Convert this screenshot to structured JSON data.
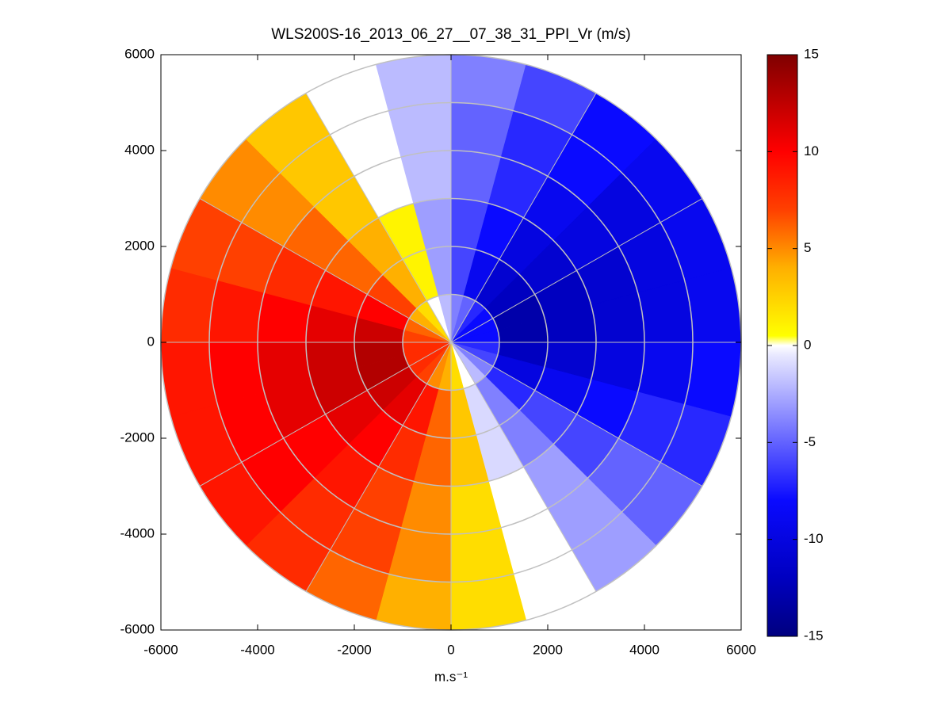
{
  "chart_data": {
    "type": "polar_heatmap",
    "title": "WLS200S-16_2013_06_27__07_38_31_PPI_Vr (m/s)",
    "xlabel": "m.s⁻¹",
    "xlim": [
      -6000,
      6000
    ],
    "ylim": [
      -6000,
      6000
    ],
    "xticks": [
      -6000,
      -4000,
      -2000,
      0,
      2000,
      4000,
      6000
    ],
    "yticks": [
      -6000,
      -4000,
      -2000,
      0,
      2000,
      4000,
      6000
    ],
    "azimuths": [
      7.5,
      22.5,
      37.5,
      52.5,
      67.5,
      82.5,
      97.5,
      112.5,
      127.5,
      142.5,
      157.5,
      172.5,
      187.5,
      202.5,
      217.5,
      232.5,
      247.5,
      262.5,
      277.5,
      292.5,
      307.5,
      322.5,
      337.5,
      352.5
    ],
    "azimuth_width": 15,
    "range_edges": [
      0,
      1000,
      2000,
      3000,
      4000,
      5000,
      6000
    ],
    "values": [
      [
        -4,
        -6,
        -6,
        -5,
        -5,
        -4
      ],
      [
        -5,
        -9,
        -8,
        -7,
        -7,
        -6
      ],
      [
        -7,
        -11,
        -10,
        -9,
        -8,
        -8
      ],
      [
        -8,
        -12,
        -11,
        -10,
        -10,
        -9
      ],
      [
        -8,
        -13,
        -12,
        -11,
        -10,
        -9
      ],
      [
        -8,
        -13,
        -12,
        -11,
        -10,
        -9
      ],
      [
        -7,
        -12,
        -11,
        -10,
        -9,
        -8
      ],
      [
        -6,
        -10,
        -9,
        -8,
        -7,
        -7
      ],
      [
        -4,
        -7,
        -6,
        -6,
        -5,
        -5
      ],
      [
        -2,
        -4,
        -4,
        -3,
        -3,
        -3
      ],
      [
        0,
        -1,
        -1,
        0,
        0,
        0
      ],
      [
        2,
        3,
        3,
        2,
        2,
        2
      ],
      [
        4,
        6,
        6,
        5,
        5,
        4
      ],
      [
        5,
        9,
        8,
        7,
        7,
        6
      ],
      [
        7,
        11,
        10,
        9,
        8,
        8
      ],
      [
        8,
        12,
        11,
        10,
        10,
        9
      ],
      [
        8,
        13,
        12,
        11,
        10,
        9
      ],
      [
        8,
        13,
        12,
        11,
        10,
        9
      ],
      [
        7,
        12,
        11,
        10,
        9,
        8
      ],
      [
        6,
        10,
        9,
        8,
        7,
        7
      ],
      [
        4,
        7,
        6,
        6,
        5,
        5
      ],
      [
        2,
        4,
        4,
        3,
        3,
        3
      ],
      [
        0,
        1,
        1,
        0,
        0,
        0
      ],
      [
        -2,
        -3,
        -3,
        -2,
        -2,
        -2
      ]
    ],
    "rings": [
      1000,
      2000,
      3000,
      4000,
      5000,
      6000
    ],
    "spokes": [
      0,
      30,
      60,
      90,
      120,
      150,
      180,
      210,
      240,
      270,
      300,
      330
    ],
    "grid_color": "#c0c0c0",
    "clim": [
      -15,
      15
    ],
    "cticks": [
      -15,
      -10,
      -5,
      0,
      5,
      10,
      15
    ],
    "colormap": [
      [
        -15,
        "#00007f"
      ],
      [
        -12,
        "#0000c0"
      ],
      [
        -8,
        "#0a0aff"
      ],
      [
        -4,
        "#8080ff"
      ],
      [
        -0.5,
        "#e8e8ff"
      ],
      [
        0,
        "#ffffff"
      ],
      [
        0.5,
        "#ffff00"
      ],
      [
        4,
        "#ffb000"
      ],
      [
        7,
        "#ff4000"
      ],
      [
        10,
        "#ff0000"
      ],
      [
        15,
        "#7f0000"
      ]
    ]
  }
}
